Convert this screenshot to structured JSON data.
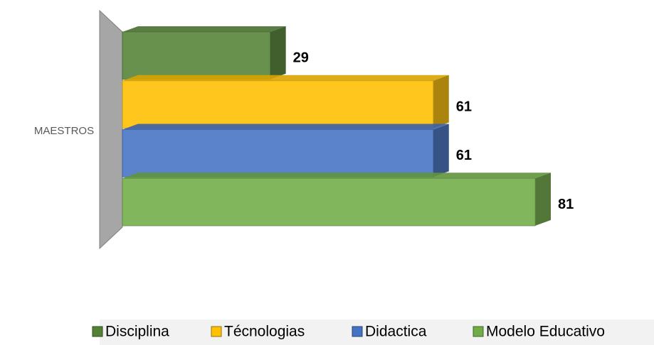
{
  "chart_data": {
    "type": "bar",
    "orientation": "horizontal",
    "categories": [
      "MAESTROS"
    ],
    "series": [
      {
        "name": "Disciplina",
        "color": "#548235",
        "values": [
          29
        ]
      },
      {
        "name": "Técnologias",
        "color": "#ffc000",
        "values": [
          61
        ]
      },
      {
        "name": "Didactica",
        "color": "#4472c4",
        "values": [
          61
        ]
      },
      {
        "name": "Modelo Educativo",
        "color": "#70ad47",
        "values": [
          81
        ]
      }
    ],
    "legend": "bottom"
  }
}
